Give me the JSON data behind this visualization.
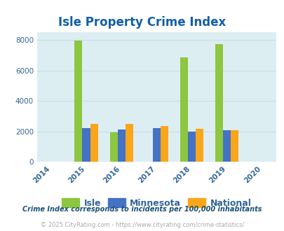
{
  "title": "Isle Property Crime Index",
  "years": [
    2014,
    2015,
    2016,
    2017,
    2018,
    2019,
    2020
  ],
  "isle": [
    0,
    7950,
    1950,
    0,
    6875,
    7725,
    0
  ],
  "minnesota": [
    0,
    2200,
    2100,
    2200,
    2000,
    2075,
    0
  ],
  "national": [
    0,
    2475,
    2475,
    2350,
    2175,
    2075,
    0
  ],
  "color_isle": "#8dc63f",
  "color_minnesota": "#4472c4",
  "color_national": "#faa61a",
  "ylim": [
    0,
    8500
  ],
  "yticks": [
    0,
    2000,
    4000,
    6000,
    8000
  ],
  "background_color": "#ddeef3",
  "grid_color": "#c8dde5",
  "title_color": "#1260a8",
  "tick_color": "#336699",
  "footer_note": "Crime Index corresponds to incidents per 100,000 inhabitants",
  "copyright": "© 2025 CityRating.com - https://www.cityrating.com/crime-statistics/",
  "bar_width": 0.22
}
